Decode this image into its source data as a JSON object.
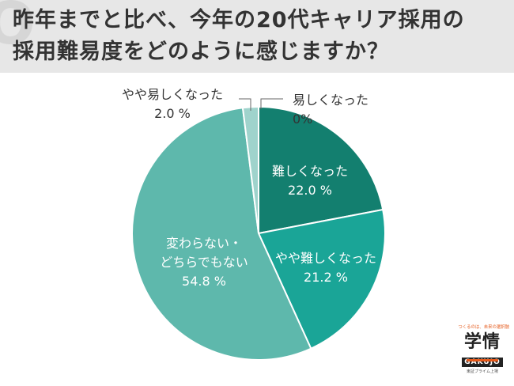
{
  "title": {
    "line1": "昨年までと比べ、今年の20代キャリア採用の",
    "line2": "採用難易度をどのように感じますか？"
  },
  "chart_data": {
    "type": "pie",
    "title": "昨年までと比べ、今年の20代キャリア採用の採用難易度をどのように感じますか？",
    "unit": "%",
    "start": "12 o'clock",
    "direction": "clockwise",
    "slices": [
      {
        "label": "易しくなった",
        "value": 0,
        "display": "0%",
        "color": "#2e8b78"
      },
      {
        "label": "難しくなった",
        "value": 22.0,
        "display": "22.0 %",
        "color": "#137f6f"
      },
      {
        "label": "やや難しくなった",
        "value": 21.2,
        "display": "21.2 %",
        "color": "#1aa597"
      },
      {
        "label": "変わらない・どちらでもない",
        "value": 54.8,
        "display": "54.8 %",
        "color": "#5eb8ac"
      },
      {
        "label": "やや易しくなった",
        "value": 2.0,
        "display": "2.0 %",
        "color": "#9fd3cc"
      }
    ],
    "slice_labels": [
      {
        "lines": [
          "易しくなった",
          "0%"
        ]
      },
      {
        "lines": [
          "難しくなった",
          "22.0 %"
        ]
      },
      {
        "lines": [
          "やや難しくなった",
          "21.2 %"
        ]
      },
      {
        "lines": [
          "変わらない・",
          "どちらでもない",
          "54.8 %"
        ]
      },
      {
        "lines": [
          "やや易しくなった",
          "2.0 %"
        ]
      }
    ]
  },
  "brand": {
    "tagline": "つくるのは、未来の選択肢",
    "mark": "学情",
    "name": "GAKUJO",
    "sub": "東証プライム上場"
  }
}
